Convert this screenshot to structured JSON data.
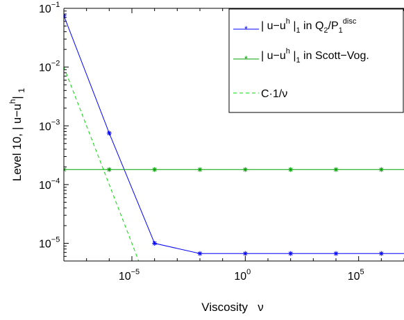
{
  "chart_data": {
    "type": "line",
    "xlabel": "Viscosity   ν",
    "ylabel": "Level 10, | u−u",
    "ylabel_sup": "h",
    "ylabel_sub_suffix": "| ",
    "ylabel_sub": "1",
    "x_scale": "log",
    "y_scale": "log",
    "xlim": [
      1e-08,
      10000000.0
    ],
    "ylim": [
      5e-06,
      0.1
    ],
    "x_ticks": [
      {
        "value": 1e-05,
        "base": "10",
        "exp": "−5"
      },
      {
        "value": 1,
        "base": "10",
        "exp": "0"
      },
      {
        "value": 100000.0,
        "base": "10",
        "exp": "5"
      }
    ],
    "y_ticks": [
      {
        "value": 1e-05,
        "base": "10",
        "exp": "−5"
      },
      {
        "value": 0.0001,
        "base": "10",
        "exp": "−4"
      },
      {
        "value": 0.001,
        "base": "10",
        "exp": "−3"
      },
      {
        "value": 0.01,
        "base": "10",
        "exp": "−2"
      },
      {
        "value": 0.1,
        "base": "10",
        "exp": "−1"
      }
    ],
    "legend_position": "top-right",
    "series": [
      {
        "name": "| u−u^h |_1 in Q_2/P_1^disc",
        "legend": {
          "main": "| u−u",
          "sup1": "h",
          "mid": " |",
          "sub1": "1",
          "rest": " in Q",
          "sub2": "2",
          "slash": "/P",
          "sub3": "1",
          "sup2": "disc"
        },
        "color": "#0000ff",
        "style": "solid",
        "marker": "*",
        "x": [
          1e-08,
          1e-06,
          0.0001,
          0.01,
          1,
          100,
          10000,
          1000000.0,
          10000000.0
        ],
        "y": [
          0.075,
          0.00075,
          1e-05,
          6.7e-06,
          6.7e-06,
          6.7e-06,
          6.7e-06,
          6.7e-06,
          6.7e-06
        ],
        "marker_count": 8
      },
      {
        "name": "| u−u^h |_1 in Scott−Vog.",
        "legend": {
          "main": "| u−u",
          "sup1": "h",
          "mid": " |",
          "sub1": "1",
          "rest": " in Scott−Vog."
        },
        "color": "#00a000",
        "style": "solid",
        "marker": "*",
        "x": [
          1e-08,
          1e-06,
          0.0001,
          0.01,
          1,
          100,
          10000,
          1000000.0,
          10000000.0
        ],
        "y": [
          0.00018,
          0.00018,
          0.00018,
          0.00018,
          0.00018,
          0.00018,
          0.00018,
          0.00018,
          0.00018
        ],
        "marker_count": 8
      },
      {
        "name": "C·1/ν",
        "legend": {
          "main": "C·1/ν"
        },
        "color": "#00dd00",
        "style": "dashed",
        "marker": "none",
        "x": [
          1e-08,
          1e-07,
          1e-06,
          1e-05,
          2.6e-05
        ],
        "y": [
          0.01,
          0.001,
          0.0001,
          1e-05,
          3.8e-06
        ],
        "marker_count": 0
      }
    ]
  }
}
